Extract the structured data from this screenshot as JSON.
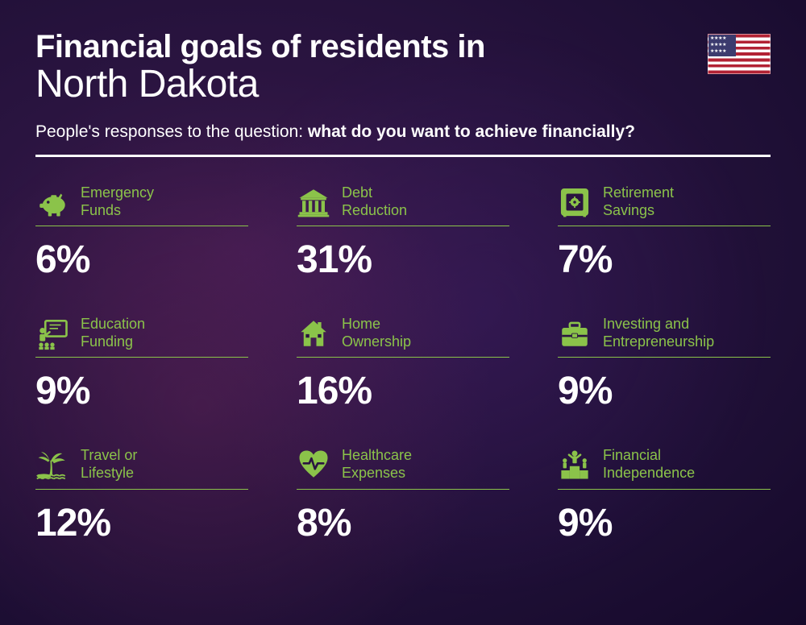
{
  "title": {
    "line1": "Financial goals of residents in",
    "line2": "North Dakota"
  },
  "subtitle": {
    "prefix": "People's responses to the question: ",
    "bold": "what do you want to achieve financially?"
  },
  "colors": {
    "accent": "#8bc34a",
    "text": "#ffffff",
    "divider": "#ffffff",
    "background_gradient": [
      "#3d1a4d",
      "#2a1440",
      "#1e0f35",
      "#15092a"
    ]
  },
  "typography": {
    "title_line1_size": 40,
    "title_line1_weight": 800,
    "title_line2_size": 48,
    "title_line2_weight": 300,
    "subtitle_size": 21,
    "label_size": 18,
    "value_size": 48,
    "value_weight": 800
  },
  "layout": {
    "grid_columns": 3,
    "grid_rows": 3,
    "column_gap": 60,
    "row_gap": 42
  },
  "flag": "usa",
  "goals": [
    {
      "icon": "piggy-bank",
      "label": "Emergency\nFunds",
      "value": "6%"
    },
    {
      "icon": "bank",
      "label": "Debt\nReduction",
      "value": "31%"
    },
    {
      "icon": "safe",
      "label": "Retirement\nSavings",
      "value": "7%"
    },
    {
      "icon": "education",
      "label": "Education\nFunding",
      "value": "9%"
    },
    {
      "icon": "house",
      "label": "Home\nOwnership",
      "value": "16%"
    },
    {
      "icon": "briefcase",
      "label": "Investing and\nEntrepreneurship",
      "value": "9%"
    },
    {
      "icon": "palm-tree",
      "label": "Travel or\nLifestyle",
      "value": "12%"
    },
    {
      "icon": "heart-pulse",
      "label": "Healthcare\nExpenses",
      "value": "8%"
    },
    {
      "icon": "podium",
      "label": "Financial\nIndependence",
      "value": "9%"
    }
  ]
}
